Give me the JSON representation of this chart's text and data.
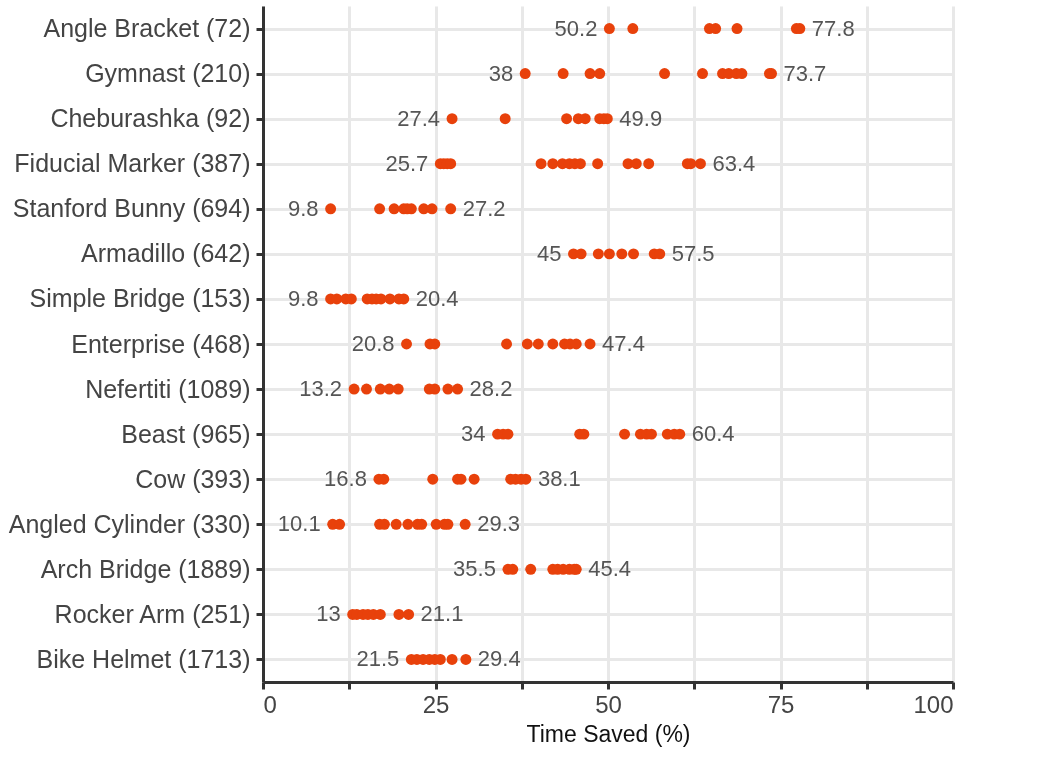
{
  "chart_data": {
    "type": "scatter",
    "orientation": "horizontal",
    "xlabel": "Time Saved (%)",
    "marker": "circle",
    "grid": true,
    "categories": [
      "Angle Bracket (72)",
      "Gymnast (210)",
      "Cheburashka (92)",
      "Fiducial Marker (387)",
      "Stanford Bunny (694)",
      "Armadillo (642)",
      "Simple Bridge (153)",
      "Enterprise (468)",
      "Nefertiti (1089)",
      "Beast (965)",
      "Cow (393)",
      "Angled Cylinder (330)",
      "Arch Bridge (1889)",
      "Rocker Arm (251)",
      "Bike Helmet (1713)"
    ],
    "xlim": [
      0,
      100
    ],
    "xticks": [
      0,
      {
        "value": 12.5,
        "label": null
      },
      25,
      {
        "value": 37.5,
        "label": null
      },
      50,
      {
        "value": 62.5,
        "label": null
      },
      75,
      {
        "value": 87.5,
        "label": null
      },
      100
    ],
    "series": [
      {
        "color": "#e8410b",
        "x": [
          "Angle Bracket (72)",
          "Angle Bracket (72)",
          "Angle Bracket (72)",
          "Angle Bracket (72)",
          "Angle Bracket (72)",
          "Angle Bracket (72)",
          "Angle Bracket (72)",
          "Gymnast (210)",
          "Gymnast (210)",
          "Gymnast (210)",
          "Gymnast (210)",
          "Gymnast (210)",
          "Gymnast (210)",
          "Gymnast (210)",
          "Gymnast (210)",
          "Gymnast (210)",
          "Gymnast (210)",
          "Gymnast (210)",
          "Gymnast (210)",
          "Cheburashka (92)",
          "Cheburashka (92)",
          "Cheburashka (92)",
          "Cheburashka (92)",
          "Cheburashka (92)",
          "Cheburashka (92)",
          "Cheburashka (92)",
          "Cheburashka (92)",
          "Fiducial Marker (387)",
          "Fiducial Marker (387)",
          "Fiducial Marker (387)",
          "Fiducial Marker (387)",
          "Fiducial Marker (387)",
          "Fiducial Marker (387)",
          "Fiducial Marker (387)",
          "Fiducial Marker (387)",
          "Fiducial Marker (387)",
          "Fiducial Marker (387)",
          "Fiducial Marker (387)",
          "Fiducial Marker (387)",
          "Fiducial Marker (387)",
          "Fiducial Marker (387)",
          "Fiducial Marker (387)",
          "Fiducial Marker (387)",
          "Fiducial Marker (387)",
          "Stanford Bunny (694)",
          "Stanford Bunny (694)",
          "Stanford Bunny (694)",
          "Stanford Bunny (694)",
          "Stanford Bunny (694)",
          "Stanford Bunny (694)",
          "Stanford Bunny (694)",
          "Stanford Bunny (694)",
          "Stanford Bunny (694)",
          "Armadillo (642)",
          "Armadillo (642)",
          "Armadillo (642)",
          "Armadillo (642)",
          "Armadillo (642)",
          "Armadillo (642)",
          "Armadillo (642)",
          "Armadillo (642)",
          "Simple Bridge (153)",
          "Simple Bridge (153)",
          "Simple Bridge (153)",
          "Simple Bridge (153)",
          "Simple Bridge (153)",
          "Simple Bridge (153)",
          "Simple Bridge (153)",
          "Simple Bridge (153)",
          "Simple Bridge (153)",
          "Simple Bridge (153)",
          "Simple Bridge (153)",
          "Enterprise (468)",
          "Enterprise (468)",
          "Enterprise (468)",
          "Enterprise (468)",
          "Enterprise (468)",
          "Enterprise (468)",
          "Enterprise (468)",
          "Enterprise (468)",
          "Enterprise (468)",
          "Enterprise (468)",
          "Enterprise (468)",
          "Nefertiti (1089)",
          "Nefertiti (1089)",
          "Nefertiti (1089)",
          "Nefertiti (1089)",
          "Nefertiti (1089)",
          "Nefertiti (1089)",
          "Nefertiti (1089)",
          "Nefertiti (1089)",
          "Nefertiti (1089)",
          "Beast (965)",
          "Beast (965)",
          "Beast (965)",
          "Beast (965)",
          "Beast (965)",
          "Beast (965)",
          "Beast (965)",
          "Beast (965)",
          "Beast (965)",
          "Beast (965)",
          "Beast (965)",
          "Beast (965)",
          "Cow (393)",
          "Cow (393)",
          "Cow (393)",
          "Cow (393)",
          "Cow (393)",
          "Cow (393)",
          "Cow (393)",
          "Cow (393)",
          "Cow (393)",
          "Cow (393)",
          "Angled Cylinder (330)",
          "Angled Cylinder (330)",
          "Angled Cylinder (330)",
          "Angled Cylinder (330)",
          "Angled Cylinder (330)",
          "Angled Cylinder (330)",
          "Angled Cylinder (330)",
          "Angled Cylinder (330)",
          "Angled Cylinder (330)",
          "Angled Cylinder (330)",
          "Angled Cylinder (330)",
          "Angled Cylinder (330)",
          "Arch Bridge (1889)",
          "Arch Bridge (1889)",
          "Arch Bridge (1889)",
          "Arch Bridge (1889)",
          "Arch Bridge (1889)",
          "Arch Bridge (1889)",
          "Arch Bridge (1889)",
          "Arch Bridge (1889)",
          "Arch Bridge (1889)",
          "Rocker Arm (251)",
          "Rocker Arm (251)",
          "Rocker Arm (251)",
          "Rocker Arm (251)",
          "Rocker Arm (251)",
          "Rocker Arm (251)",
          "Rocker Arm (251)",
          "Rocker Arm (251)",
          "Bike Helmet (1713)",
          "Bike Helmet (1713)",
          "Bike Helmet (1713)",
          "Bike Helmet (1713)",
          "Bike Helmet (1713)",
          "Bike Helmet (1713)",
          "Bike Helmet (1713)",
          "Bike Helmet (1713)"
        ],
        "values": [
          50.2,
          53.6,
          64.7,
          65.6,
          68.7,
          77.3,
          77.8,
          38,
          43.5,
          47.4,
          48.8,
          58.2,
          63.7,
          66.6,
          67.5,
          68.6,
          69.4,
          73.4,
          73.7,
          27.4,
          35.1,
          44.0,
          45.7,
          46.7,
          48.8,
          49.4,
          49.9,
          25.7,
          26.2,
          26.7,
          27.2,
          40.3,
          42.0,
          43.4,
          44.4,
          45.2,
          46.0,
          48.5,
          52.9,
          54.1,
          55.9,
          61.5,
          62.0,
          63.4,
          9.8,
          16.9,
          19.0,
          20.4,
          20.9,
          21.5,
          23.3,
          24.5,
          27.2,
          45,
          46.1,
          48.6,
          50.2,
          52.0,
          53.7,
          56.7,
          57.5,
          9.8,
          10.7,
          12.0,
          12.8,
          15.1,
          15.8,
          16.4,
          17.1,
          18.4,
          19.7,
          20.4,
          20.8,
          24.2,
          24.9,
          35.3,
          38.3,
          39.9,
          42.0,
          43.7,
          44.5,
          45.4,
          47.4,
          13.2,
          15.0,
          17.0,
          18.3,
          19.6,
          24.1,
          24.9,
          26.8,
          28.2,
          34,
          34.8,
          35.5,
          45.9,
          46.5,
          52.4,
          54.7,
          55.6,
          56.3,
          58.6,
          59.6,
          60.4,
          16.8,
          17.5,
          24.6,
          28.2,
          28.7,
          30.6,
          35.9,
          36.6,
          37.4,
          38.1,
          10.1,
          11.1,
          16.9,
          17.6,
          19.3,
          21.0,
          22.4,
          23.0,
          25.1,
          26.3,
          26.8,
          29.3,
          35.5,
          36.2,
          38.8,
          42.0,
          42.7,
          43.5,
          44.4,
          45.1,
          45.4,
          13,
          13.6,
          14.5,
          15.2,
          16.0,
          17.0,
          19.7,
          21.1,
          21.5,
          22.3,
          23.2,
          24.1,
          24.9,
          25.7,
          27.4,
          29.4
        ],
        "value_labels": [
          "50.2",
          null,
          null,
          null,
          null,
          null,
          "77.8",
          "38",
          null,
          null,
          null,
          null,
          null,
          null,
          null,
          null,
          null,
          null,
          "73.7",
          "27.4",
          null,
          null,
          null,
          null,
          null,
          null,
          "49.9",
          "25.7",
          null,
          null,
          null,
          null,
          null,
          null,
          null,
          null,
          null,
          null,
          null,
          null,
          null,
          null,
          null,
          "63.4",
          "9.8",
          null,
          null,
          null,
          null,
          null,
          null,
          null,
          "27.2",
          "45",
          null,
          null,
          null,
          null,
          null,
          null,
          "57.5",
          "9.8",
          null,
          null,
          null,
          null,
          null,
          null,
          null,
          null,
          null,
          "20.4",
          "20.8",
          null,
          null,
          null,
          null,
          null,
          null,
          null,
          null,
          null,
          "47.4",
          "13.2",
          null,
          null,
          null,
          null,
          null,
          null,
          null,
          "28.2",
          "34",
          null,
          null,
          null,
          null,
          null,
          null,
          null,
          null,
          null,
          null,
          "60.4",
          "16.8",
          null,
          null,
          null,
          null,
          null,
          null,
          null,
          null,
          "38.1",
          "10.1",
          null,
          null,
          null,
          null,
          null,
          null,
          null,
          null,
          null,
          null,
          "29.3",
          "35.5",
          null,
          null,
          null,
          null,
          null,
          null,
          null,
          "45.4",
          "13",
          null,
          null,
          null,
          null,
          null,
          null,
          "21.1",
          "21.5",
          null,
          null,
          null,
          null,
          null,
          null,
          "29.4"
        ]
      }
    ]
  }
}
